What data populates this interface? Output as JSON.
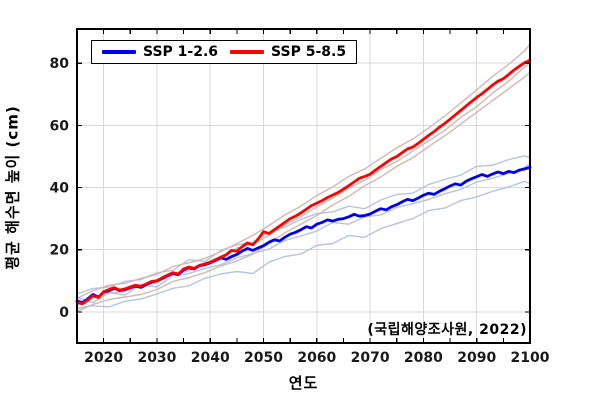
{
  "chart_data": {
    "type": "line",
    "title": "",
    "xlabel": "연도",
    "ylabel": "평균 해수면 높이 (cm)",
    "annotation": "(국립해양조사원, 2022)",
    "xlim": [
      2015,
      2100
    ],
    "ylim": [
      -10,
      91
    ],
    "xticks": [
      2020,
      2030,
      2040,
      2050,
      2060,
      2070,
      2080,
      2090,
      2100
    ],
    "yticks": [
      0,
      20,
      40,
      60,
      80
    ],
    "minor_xtick_step": 5,
    "grid": true,
    "legend": {
      "position": "top-left",
      "entries": [
        {
          "label": "SSP 1-2.6",
          "color": "#0000f0"
        },
        {
          "label": "SSP 5-8.5",
          "color": "#ff0000"
        }
      ]
    },
    "colors": {
      "grid": "#d9d9d9",
      "axis": "#000000",
      "tick_labels": "#1a1a1a",
      "ensemble_blue": "#b6c4dd",
      "ensemble_red": "#cfbab2"
    },
    "x_years": [
      2015,
      2016,
      2017,
      2018,
      2019,
      2020,
      2021,
      2022,
      2023,
      2024,
      2025,
      2026,
      2027,
      2028,
      2029,
      2030,
      2031,
      2032,
      2033,
      2034,
      2035,
      2036,
      2037,
      2038,
      2039,
      2040,
      2041,
      2042,
      2043,
      2044,
      2045,
      2046,
      2047,
      2048,
      2049,
      2050,
      2051,
      2052,
      2053,
      2054,
      2055,
      2056,
      2057,
      2058,
      2059,
      2060,
      2061,
      2062,
      2063,
      2064,
      2065,
      2066,
      2067,
      2068,
      2069,
      2070,
      2071,
      2072,
      2073,
      2074,
      2075,
      2076,
      2077,
      2078,
      2079,
      2080,
      2081,
      2082,
      2083,
      2084,
      2085,
      2086,
      2087,
      2088,
      2089,
      2090,
      2091,
      2092,
      2093,
      2094,
      2095,
      2096,
      2097,
      2098,
      2099,
      2100
    ],
    "series": [
      {
        "name": "SSP 1-2.6",
        "role": "main",
        "color": "#0000f0",
        "width": 2.8,
        "values": [
          3.5,
          3.0,
          4.2,
          5.6,
          4.8,
          6.3,
          6.8,
          7.6,
          6.9,
          7.2,
          7.8,
          8.3,
          7.9,
          8.8,
          9.6,
          10.0,
          10.8,
          11.6,
          12.4,
          12.0,
          13.5,
          14.2,
          13.8,
          14.9,
          15.2,
          15.8,
          16.6,
          17.4,
          16.9,
          17.8,
          18.5,
          19.6,
          20.4,
          19.8,
          20.6,
          21.3,
          22.4,
          23.2,
          22.8,
          24.0,
          25.0,
          25.6,
          26.4,
          27.4,
          27.0,
          28.2,
          28.8,
          29.6,
          29.2,
          29.8,
          30.0,
          30.6,
          31.4,
          30.8,
          31.0,
          31.5,
          32.4,
          33.2,
          32.8,
          33.8,
          34.5,
          35.4,
          36.2,
          35.8,
          36.6,
          37.5,
          38.2,
          37.8,
          38.8,
          39.6,
          40.5,
          41.2,
          40.8,
          42.0,
          42.8,
          43.5,
          44.2,
          43.6,
          44.4,
          45.0,
          44.5,
          45.2,
          44.8,
          45.6,
          46.0,
          46.5
        ]
      },
      {
        "name": "SSP 5-8.5",
        "role": "main",
        "color": "#ff0000",
        "width": 2.8,
        "values": [
          3.2,
          2.6,
          3.8,
          5.2,
          4.6,
          6.5,
          7.2,
          7.8,
          7.0,
          7.4,
          8.0,
          8.6,
          8.2,
          9.0,
          9.8,
          10.0,
          11.0,
          11.8,
          12.6,
          12.2,
          13.8,
          14.4,
          14.0,
          15.0,
          15.4,
          16.0,
          16.8,
          17.6,
          18.4,
          19.8,
          19.5,
          21.0,
          22.2,
          21.6,
          23.5,
          25.8,
          25.2,
          26.4,
          27.6,
          28.8,
          30.0,
          30.8,
          31.8,
          33.0,
          34.2,
          35.0,
          35.8,
          36.8,
          37.6,
          38.4,
          39.5,
          40.6,
          41.8,
          43.0,
          43.6,
          44.3,
          45.6,
          46.8,
          48.0,
          49.2,
          50.0,
          51.2,
          52.4,
          53.0,
          54.2,
          55.5,
          56.8,
          58.0,
          59.4,
          60.6,
          62.0,
          63.4,
          64.8,
          66.2,
          67.6,
          69.0,
          70.2,
          71.6,
          73.0,
          74.2,
          75.0,
          76.4,
          77.8,
          79.0,
          80.2,
          81.0
        ]
      }
    ],
    "ensemble_x": [
      2015,
      2018,
      2021,
      2024,
      2027,
      2030,
      2033,
      2036,
      2039,
      2042,
      2045,
      2048,
      2051,
      2054,
      2057,
      2060,
      2063,
      2066,
      2069,
      2072,
      2075,
      2078,
      2081,
      2084,
      2087,
      2090,
      2093,
      2096,
      2099,
      2100
    ],
    "ensemble_series": [
      {
        "name": "ssp126-member-1",
        "color": "#b6c4dd",
        "width": 1.4,
        "values": [
          5.8,
          7.5,
          8.0,
          9.8,
          10.4,
          12.6,
          13.4,
          16.8,
          16.2,
          19.8,
          21.6,
          22.4,
          25.6,
          27.2,
          29.8,
          31.6,
          32.2,
          34.0,
          33.2,
          36.0,
          37.8,
          38.2,
          41.0,
          42.6,
          44.0,
          46.8,
          47.2,
          49.0,
          50.2,
          49.6
        ]
      },
      {
        "name": "ssp126-member-2",
        "color": "#b6c4dd",
        "width": 1.4,
        "values": [
          1.2,
          2.0,
          1.6,
          3.4,
          4.2,
          5.8,
          7.6,
          8.4,
          10.8,
          12.2,
          13.0,
          12.4,
          16.0,
          17.8,
          18.6,
          21.4,
          22.0,
          24.6,
          24.0,
          26.8,
          28.4,
          30.0,
          32.6,
          33.4,
          35.8,
          37.0,
          38.8,
          40.2,
          42.0,
          41.2
        ]
      },
      {
        "name": "ssp126-member-3",
        "color": "#b6c4dd",
        "width": 1.4,
        "values": [
          4.6,
          3.0,
          6.2,
          5.4,
          8.8,
          8.0,
          11.6,
          12.4,
          14.0,
          15.2,
          17.4,
          18.8,
          20.2,
          23.0,
          24.4,
          26.0,
          28.8,
          28.2,
          30.6,
          31.2,
          33.6,
          34.8,
          36.2,
          38.0,
          39.4,
          41.8,
          43.0,
          44.6,
          46.4,
          47.8
        ]
      },
      {
        "name": "ssp585-member-1",
        "color": "#cfbab2",
        "width": 1.4,
        "values": [
          4.4,
          6.8,
          8.6,
          9.2,
          10.8,
          12.0,
          14.6,
          15.8,
          17.2,
          19.4,
          22.0,
          24.6,
          27.8,
          31.2,
          34.0,
          37.4,
          40.2,
          43.6,
          46.0,
          49.4,
          52.8,
          55.6,
          59.2,
          63.0,
          67.2,
          71.4,
          75.8,
          79.6,
          84.0,
          86.2
        ]
      },
      {
        "name": "ssp585-member-2",
        "color": "#cfbab2",
        "width": 1.4,
        "values": [
          0.2,
          2.4,
          4.0,
          4.8,
          5.6,
          7.2,
          9.8,
          11.0,
          12.6,
          14.8,
          16.4,
          18.6,
          22.0,
          25.4,
          28.2,
          31.0,
          34.4,
          37.2,
          40.6,
          43.4,
          46.8,
          49.6,
          53.2,
          56.6,
          60.4,
          64.2,
          68.0,
          71.8,
          75.6,
          77.0
        ]
      },
      {
        "name": "ssp585-member-3",
        "color": "#cfbab2",
        "width": 1.4,
        "values": [
          2.0,
          4.6,
          6.0,
          6.6,
          8.4,
          9.4,
          12.2,
          13.2,
          15.8,
          17.0,
          20.6,
          21.8,
          24.6,
          28.0,
          30.6,
          33.8,
          36.6,
          39.8,
          42.4,
          45.8,
          48.4,
          51.8,
          55.0,
          58.4,
          62.6,
          66.0,
          70.4,
          74.2,
          78.8,
          80.0
        ]
      }
    ]
  }
}
